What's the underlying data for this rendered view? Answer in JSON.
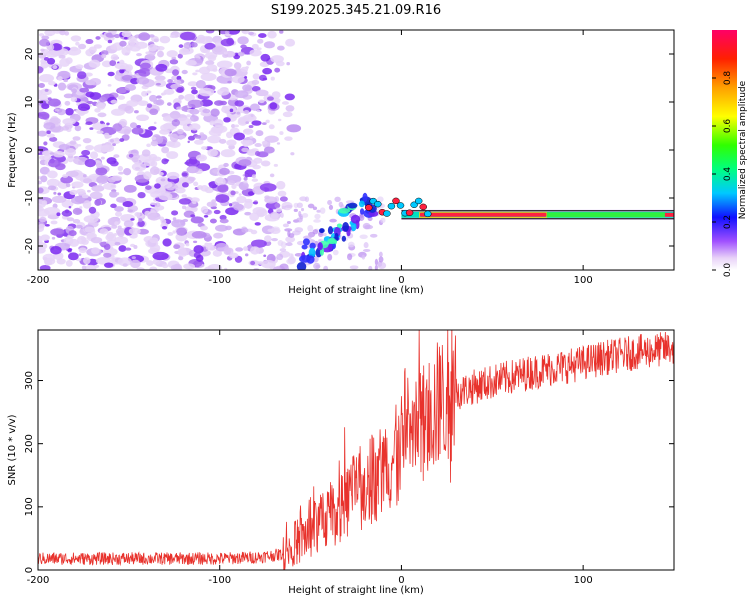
{
  "title": "S199.2025.345.21.09.R16",
  "chart_data": [
    {
      "type": "heatmap",
      "xlabel": "Height of straight line (km)",
      "ylabel": "Frequency (Hz)",
      "xlim": [
        -200,
        150
      ],
      "ylim": [
        -25,
        25
      ],
      "x_ticks": [
        -200,
        -100,
        0,
        100
      ],
      "y_ticks": [
        -20,
        -10,
        0,
        10,
        20
      ],
      "colorbar": {
        "label": "Normalized spectral amplitude",
        "range": [
          0,
          1
        ],
        "ticks": [
          0.0,
          0.2,
          0.4,
          0.6,
          0.8
        ]
      },
      "features": {
        "noise_region_x": [
          -200,
          -65
        ],
        "chirp_segment": {
          "x": [
            -55,
            -15
          ],
          "freq_hz": [
            -22,
            -11
          ]
        },
        "tone_freq_hz": -13.5,
        "tone_x": [
          10,
          150
        ]
      }
    },
    {
      "type": "line",
      "xlabel": "Height of straight line (km)",
      "ylabel": "SNR (10 * v/v)",
      "xlim": [
        -200,
        150
      ],
      "ylim": [
        0,
        380
      ],
      "x_ticks": [
        -200,
        -100,
        0,
        100
      ],
      "y_ticks": [
        0,
        100,
        200,
        300
      ],
      "series": [
        {
          "name": "SNR",
          "color": "#e8322c",
          "x": [
            -200,
            -180,
            -160,
            -140,
            -120,
            -100,
            -80,
            -65,
            -60,
            -50,
            -40,
            -30,
            -20,
            -10,
            0,
            10,
            20,
            30,
            40,
            50,
            60,
            70,
            80,
            90,
            100,
            110,
            120,
            130,
            140,
            150
          ],
          "y": [
            18,
            18,
            18,
            18,
            18,
            18,
            20,
            25,
            40,
            60,
            85,
            110,
            135,
            160,
            190,
            225,
            260,
            280,
            290,
            298,
            305,
            312,
            318,
            322,
            328,
            335,
            340,
            345,
            348,
            352
          ]
        }
      ]
    }
  ]
}
